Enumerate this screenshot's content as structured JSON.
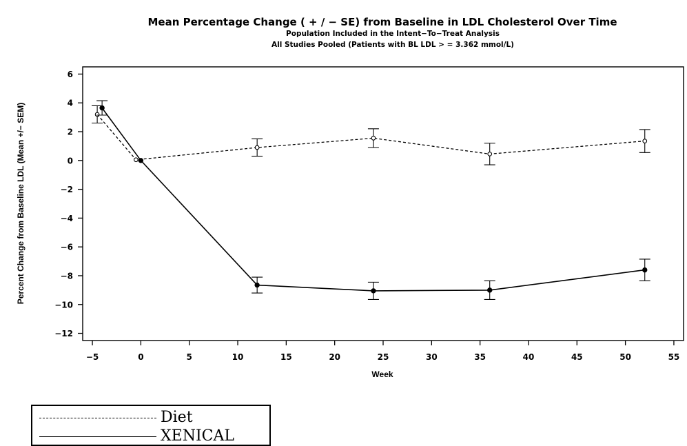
{
  "chart_data": {
    "type": "line",
    "title": "Mean Percentage Change ( + / − SE) from Baseline in LDL Cholesterol Over Time",
    "subtitle": "Population Included in the Intent−To−Treat Analysis",
    "subtitle2": "All Studies Pooled (Patients with BL LDL > = 3.362 mmol/L)",
    "xlabel": "Week",
    "ylabel": "Percent Change from Baseline LDL (Mean +/− SEM)",
    "xlim": [
      -6,
      56
    ],
    "ylim": [
      -12.5,
      6.5
    ],
    "xticks": [
      -5,
      0,
      5,
      10,
      15,
      20,
      25,
      30,
      35,
      40,
      45,
      50,
      55
    ],
    "yticks": [
      6,
      4,
      2,
      0,
      -2,
      -4,
      -6,
      -8,
      -10,
      -12
    ],
    "xtick_labels": [
      "−5",
      "0",
      "5",
      "10",
      "15",
      "20",
      "25",
      "30",
      "35",
      "40",
      "45",
      "50",
      "55"
    ],
    "ytick_labels": [
      "6",
      "4",
      "2",
      "0",
      "−2",
      "−4",
      "−6",
      "−8",
      "−10",
      "−12"
    ],
    "grid": false,
    "legend_position": "bottom-left",
    "series": [
      {
        "name": "Diet",
        "style": "dashed",
        "marker": "open-circle",
        "x": [
          -4.5,
          -0.5,
          12,
          24,
          36,
          52
        ],
        "y": [
          3.2,
          0.05,
          0.9,
          1.55,
          0.45,
          1.35
        ],
        "se": [
          0.6,
          0.05,
          0.6,
          0.65,
          0.75,
          0.8
        ]
      },
      {
        "name": "XENICAL",
        "style": "solid",
        "marker": "filled-circle",
        "x": [
          -4,
          0,
          12,
          24,
          36,
          52
        ],
        "y": [
          3.65,
          0.0,
          -8.65,
          -9.05,
          -9.0,
          -7.6
        ],
        "se": [
          0.5,
          0.05,
          0.55,
          0.6,
          0.65,
          0.75
        ]
      }
    ]
  }
}
